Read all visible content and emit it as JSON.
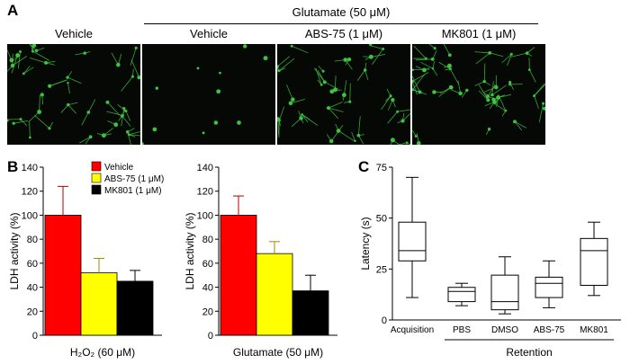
{
  "panel_a": {
    "letter": "A",
    "group_header": "Glutamate (50 μM)",
    "images": [
      {
        "label": "Vehicle",
        "neurite_density": 0.95
      },
      {
        "label": "Vehicle",
        "neurite_density": 0.22
      },
      {
        "label": "ABS-75 (1 μM)",
        "neurite_density": 0.85
      },
      {
        "label": "MK801 (1 μM)",
        "neurite_density": 1.0
      }
    ],
    "colors": {
      "background": "#050805",
      "stain": "#3ec43e"
    }
  },
  "panel_b": {
    "letter": "B"
  },
  "panel_c": {
    "letter": "C"
  },
  "chart_data": [
    {
      "type": "bar",
      "panel": "B",
      "xlabel": "H₂O₂ (60 μM)",
      "ylabel": "LDH activity (%)",
      "ylim": [
        0,
        140
      ],
      "yticks": [
        "0",
        "20",
        "40",
        "60",
        "80",
        "100",
        "120",
        "140"
      ],
      "legend": {
        "placement": "top-right",
        "entries": [
          "Vehicle",
          "ABS-75 (1 μM)",
          "MK801 (1 μM)"
        ]
      },
      "series": [
        {
          "name": "Vehicle",
          "value": 100,
          "error": 24,
          "color": "#ff0000"
        },
        {
          "name": "ABS-75 (1 μM)",
          "value": 52,
          "error": 12,
          "color": "#ffff00"
        },
        {
          "name": "MK801 (1 μM)",
          "value": 45,
          "error": 9,
          "color": "#000000"
        }
      ]
    },
    {
      "type": "bar",
      "panel": "B",
      "xlabel": "Glutamate (50 μM)",
      "ylabel": "LDH activity (%)",
      "ylim": [
        0,
        140
      ],
      "yticks": [
        "0",
        "20",
        "40",
        "60",
        "80",
        "100",
        "120",
        "140"
      ],
      "series": [
        {
          "name": "Vehicle",
          "value": 100,
          "error": 16,
          "color": "#ff0000"
        },
        {
          "name": "ABS-75 (1 μM)",
          "value": 68,
          "error": 10,
          "color": "#ffff00"
        },
        {
          "name": "MK801 (1 μM)",
          "value": 37,
          "error": 13,
          "color": "#000000"
        }
      ]
    },
    {
      "type": "box",
      "panel": "C",
      "ylabel": "Latency (s)",
      "ylim": [
        0,
        75
      ],
      "yticks": [
        "0",
        "25",
        "50",
        "75"
      ],
      "group_label": "Retention",
      "categories": [
        "Acquisition",
        "PBS",
        "DMSO",
        "ABS-75",
        "MK801"
      ],
      "boxes": [
        {
          "label": "Acquisition",
          "min": 11,
          "q1": 29,
          "median": 34,
          "q3": 48,
          "max": 70
        },
        {
          "label": "PBS",
          "min": 7,
          "q1": 9,
          "median": 14,
          "q3": 16,
          "max": 18
        },
        {
          "label": "DMSO",
          "min": 3,
          "q1": 5,
          "median": 9,
          "q3": 22,
          "max": 31
        },
        {
          "label": "ABS-75",
          "min": 6,
          "q1": 11,
          "median": 18,
          "q3": 21,
          "max": 29
        },
        {
          "label": "MK801",
          "min": 12,
          "q1": 17,
          "median": 34,
          "q3": 40,
          "max": 48
        }
      ]
    }
  ]
}
